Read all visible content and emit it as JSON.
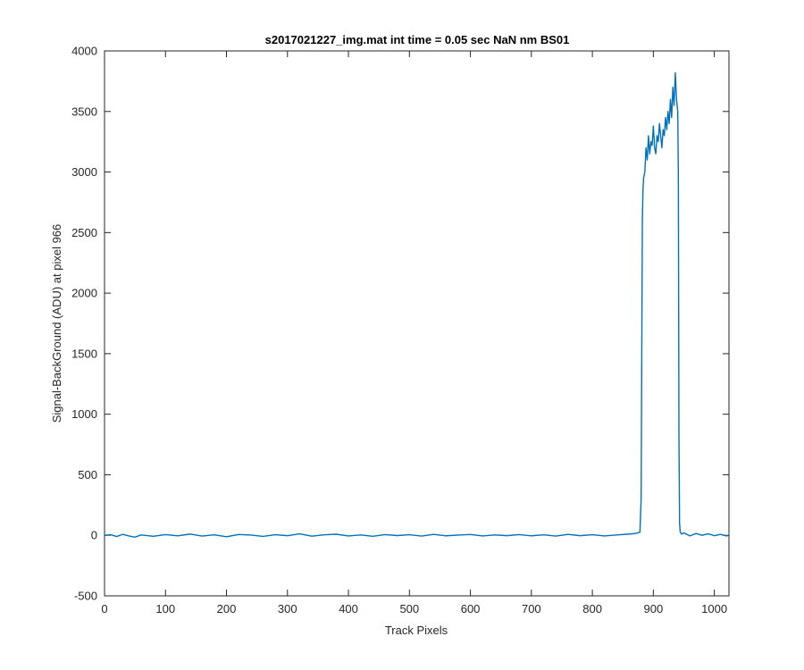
{
  "chart_data": {
    "type": "line",
    "title": "s2017021227_img.mat int time = 0.05 sec  NaN nm BS01",
    "xlabel": "Track Pixels",
    "ylabel": "Signal-BackGround (ADU) at pixel 966",
    "xlim": [
      0,
      1024
    ],
    "ylim": [
      -500,
      4000
    ],
    "xticks": [
      "0",
      "100",
      "200",
      "300",
      "400",
      "500",
      "600",
      "700",
      "800",
      "900",
      "1000"
    ],
    "yticks": [
      "-500",
      "0",
      "500",
      "1000",
      "1500",
      "2000",
      "2500",
      "3000",
      "3500",
      "4000"
    ],
    "grid": false,
    "line_color": "#0072BD",
    "series": [
      {
        "x": [
          0,
          10,
          20,
          30,
          40,
          50,
          60,
          80,
          100,
          120,
          140,
          160,
          180,
          200,
          220,
          240,
          260,
          280,
          300,
          320,
          340,
          360,
          380,
          400,
          420,
          440,
          460,
          480,
          500,
          520,
          540,
          560,
          580,
          600,
          620,
          640,
          660,
          680,
          700,
          720,
          740,
          760,
          780,
          800,
          820,
          840,
          860,
          870,
          878,
          880,
          881,
          882,
          883,
          884,
          886,
          888,
          890,
          892,
          894,
          896,
          898,
          900,
          902,
          904,
          906,
          908,
          910,
          912,
          914,
          916,
          918,
          920,
          922,
          924,
          926,
          928,
          930,
          932,
          934,
          936,
          938,
          940,
          941,
          942,
          943,
          944,
          946,
          950,
          960,
          970,
          980,
          990,
          1000,
          1010,
          1020,
          1024
        ],
        "y": [
          0,
          5,
          -10,
          8,
          -5,
          -15,
          3,
          -8,
          6,
          -4,
          10,
          -6,
          4,
          -12,
          7,
          2,
          -9,
          5,
          -3,
          12,
          -7,
          4,
          9,
          -5,
          3,
          -8,
          6,
          -2,
          5,
          -6,
          8,
          -4,
          2,
          7,
          -5,
          3,
          -3,
          6,
          -4,
          4,
          -6,
          8,
          -3,
          5,
          -5,
          3,
          10,
          15,
          25,
          300,
          1500,
          2600,
          2850,
          2950,
          3000,
          3200,
          3100,
          3300,
          3150,
          3250,
          3220,
          3380,
          3200,
          3150,
          3300,
          3250,
          3400,
          3300,
          3200,
          3350,
          3300,
          3450,
          3350,
          3500,
          3400,
          3600,
          3450,
          3700,
          3550,
          3820,
          3600,
          3500,
          3000,
          800,
          100,
          30,
          10,
          20,
          -5,
          15,
          0,
          12,
          -3,
          8,
          -5,
          0
        ]
      }
    ]
  }
}
